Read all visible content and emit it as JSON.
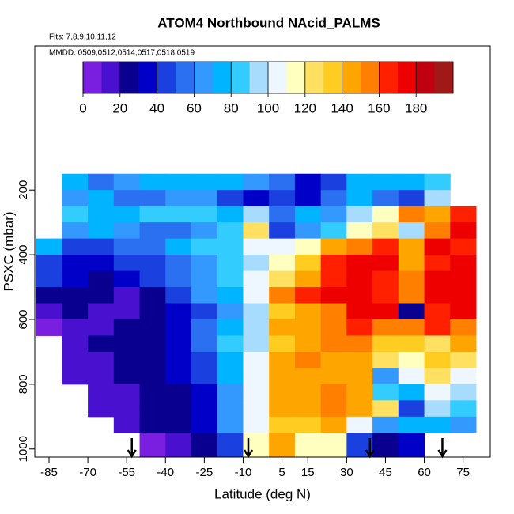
{
  "chart_data": {
    "type": "heatmap",
    "title": "ATOM4 Northbound NAcid_PALMS",
    "subtitle": "Flts: 7,8,9,10,11,12",
    "annotation": "MMDD: 0509,0512,0514,0517,0518,0519",
    "xlabel": "Latitude (deg N)",
    "ylabel": "PSXC (mbar)",
    "xlim": [
      -90.5,
      85.5
    ],
    "xticks": [
      -85,
      -70,
      -55,
      -40,
      -25,
      -10,
      5,
      15,
      30,
      45,
      60,
      75
    ],
    "ylim": [
      1025,
      -245
    ],
    "yticks": [
      200,
      400,
      600,
      800,
      1000
    ],
    "x_bins": [
      -90,
      -80,
      -70,
      -60,
      -50,
      -40,
      -30,
      -20,
      -10,
      0,
      10,
      20,
      30,
      40,
      50,
      60,
      70,
      80
    ],
    "y_bins": [
      150,
      200,
      250,
      300,
      350,
      400,
      450,
      500,
      550,
      600,
      650,
      700,
      750,
      800,
      850,
      900,
      950,
      1025
    ],
    "z": [
      [
        null,
        70,
        55,
        60,
        70,
        75,
        70,
        70,
        60,
        50,
        30,
        45,
        75,
        75,
        75,
        80,
        null
      ],
      [
        null,
        60,
        70,
        50,
        55,
        60,
        65,
        45,
        30,
        45,
        35,
        50,
        70,
        55,
        40,
        90,
        null
      ],
      [
        null,
        85,
        70,
        75,
        80,
        80,
        85,
        75,
        90,
        50,
        70,
        60,
        90,
        110,
        150,
        140,
        160
      ],
      [
        null,
        65,
        70,
        60,
        55,
        50,
        65,
        80,
        120,
        40,
        60,
        85,
        110,
        120,
        90,
        150,
        170
      ],
      [
        70,
        40,
        40,
        50,
        55,
        75,
        80,
        85,
        100,
        100,
        110,
        145,
        150,
        165,
        140,
        170,
        160
      ],
      [
        40,
        30,
        30,
        40,
        45,
        55,
        65,
        80,
        90,
        110,
        130,
        160,
        170,
        170,
        140,
        160,
        170
      ],
      [
        40,
        30,
        25,
        30,
        40,
        50,
        60,
        80,
        100,
        120,
        140,
        165,
        170,
        160,
        150,
        170,
        175
      ],
      [
        20,
        25,
        20,
        15,
        25,
        40,
        60,
        75,
        100,
        150,
        160,
        170,
        175,
        160,
        150,
        175,
        170
      ],
      [
        10,
        20,
        15,
        15,
        20,
        30,
        45,
        65,
        95,
        130,
        140,
        150,
        170,
        170,
        20,
        160,
        170
      ],
      [
        5,
        15,
        15,
        20,
        20,
        30,
        50,
        75,
        95,
        140,
        145,
        150,
        160,
        155,
        150,
        165,
        155
      ],
      [
        null,
        15,
        20,
        20,
        25,
        30,
        50,
        80,
        95,
        130,
        140,
        150,
        150,
        135,
        130,
        120,
        140
      ],
      [
        null,
        10,
        15,
        20,
        25,
        30,
        45,
        70,
        100,
        140,
        150,
        145,
        140,
        120,
        110,
        130,
        120
      ],
      [
        null,
        10,
        15,
        20,
        20,
        30,
        40,
        70,
        100,
        140,
        145,
        145,
        145,
        60,
        100,
        120,
        100
      ],
      [
        null,
        null,
        10,
        15,
        20,
        25,
        35,
        65,
        100,
        140,
        145,
        150,
        140,
        80,
        70,
        100,
        90
      ],
      [
        null,
        null,
        10,
        15,
        20,
        25,
        35,
        60,
        100,
        140,
        145,
        150,
        140,
        120,
        40,
        90,
        85
      ],
      [
        null,
        null,
        null,
        10,
        20,
        25,
        35,
        60,
        100,
        130,
        130,
        140,
        100,
        60,
        70,
        75,
        60
      ],
      [
        null,
        null,
        null,
        null,
        5,
        10,
        20,
        40,
        110,
        140,
        110,
        110,
        40,
        20,
        30,
        null,
        null
      ]
    ],
    "colorbar": {
      "lim": [
        0,
        200
      ],
      "ticks": [
        0,
        20,
        40,
        60,
        80,
        100,
        120,
        140,
        160,
        180
      ],
      "colors": [
        "#7a1fe0",
        "#4a10d0",
        "#0a0090",
        "#0000c8",
        "#1a40e0",
        "#2a70f0",
        "#3399ff",
        "#00b4ff",
        "#33ccff",
        "#a8dcff",
        "#eef6ff",
        "#ffffc0",
        "#ffe060",
        "#ffcc22",
        "#ffa500",
        "#ff8000",
        "#ff2000",
        "#ee0000",
        "#c00010",
        "#a01818"
      ]
    },
    "arrows_lat": [
      -53,
      -8,
      39,
      67
    ]
  }
}
